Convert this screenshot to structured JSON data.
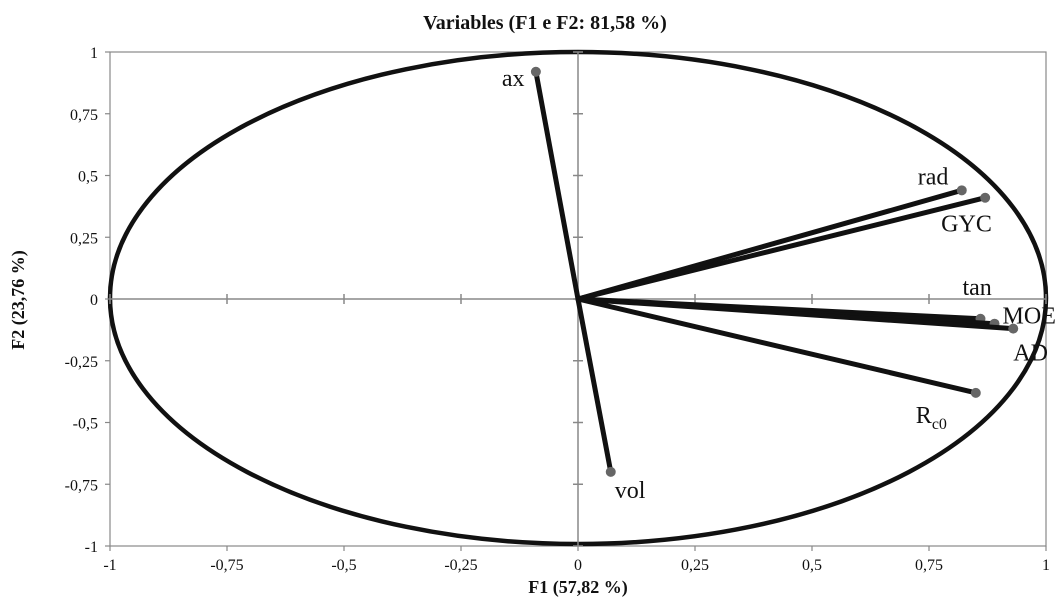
{
  "chart_data": {
    "type": "scatter",
    "subtype": "correlation-circle",
    "title": "Variables (F1 e F2: 81,58 %)",
    "xlabel": "F1 (57,82 %)",
    "ylabel": "F2 (23,76 %)",
    "xlim": [
      -1,
      1
    ],
    "ylim": [
      -1,
      1
    ],
    "x_ticks": [
      "-1",
      "-0,75",
      "-0,5",
      "-0,25",
      "0",
      "0,25",
      "0,5",
      "0,75",
      "1"
    ],
    "y_ticks": [
      "1",
      "0,75",
      "0,5",
      "0,25",
      "0",
      "-0,25",
      "-0,5",
      "-0,75",
      "-1"
    ],
    "grid": false,
    "legend": "none",
    "variables": [
      {
        "name": "ax",
        "x": -0.09,
        "y": 0.92
      },
      {
        "name": "rad",
        "x": 0.82,
        "y": 0.44
      },
      {
        "name": "GYC",
        "x": 0.87,
        "y": 0.41
      },
      {
        "name": "tan",
        "x": 0.86,
        "y": -0.08
      },
      {
        "name": "MOE",
        "x": 0.89,
        "y": -0.1
      },
      {
        "name": "AD",
        "x": 0.93,
        "y": -0.12
      },
      {
        "name": "R",
        "subscript": "c0",
        "x": 0.85,
        "y": -0.38
      },
      {
        "name": "vol",
        "x": 0.07,
        "y": -0.7
      }
    ]
  },
  "colors": {
    "line": "#111111",
    "point": "#666666",
    "axis": "#888888"
  }
}
